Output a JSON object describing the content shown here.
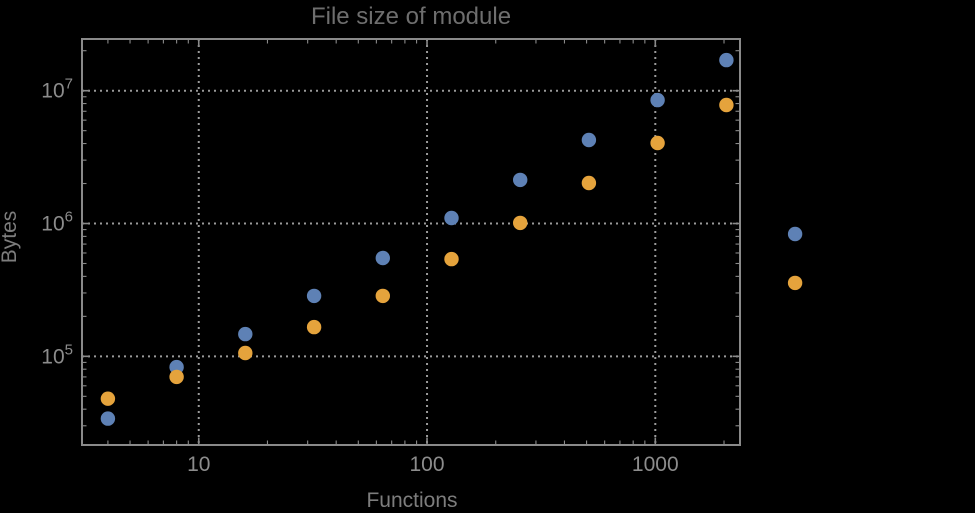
{
  "chart_data": {
    "type": "scatter",
    "title": "File size of module",
    "xlabel": "Functions",
    "ylabel": "Bytes",
    "x_scale": "log",
    "y_scale": "log",
    "xlim": [
      3.08,
      2350
    ],
    "ylim": [
      21500,
      24500000
    ],
    "grid": true,
    "legend_position": "none",
    "x_ticks": [
      {
        "value": 10,
        "label": "10"
      },
      {
        "value": 100,
        "label": "100"
      },
      {
        "value": 1000,
        "label": "1000"
      }
    ],
    "y_ticks": [
      {
        "value": 100000,
        "base": "10",
        "exp": "5"
      },
      {
        "value": 1000000,
        "base": "10",
        "exp": "6"
      },
      {
        "value": 10000000,
        "base": "10",
        "exp": "7"
      }
    ],
    "series": [
      {
        "name": "series-blue",
        "color": "#5E81B5",
        "x": [
          4,
          8,
          16,
          32,
          64,
          128,
          256,
          512,
          1024,
          2048,
          4096
        ],
        "y": [
          34000,
          83000,
          147000,
          285000,
          550000,
          1100000,
          2130000,
          4250000,
          8500000,
          17000000,
          834000
        ]
      },
      {
        "name": "series-orange",
        "color": "#E5A33C",
        "x": [
          4,
          8,
          16,
          32,
          64,
          128,
          256,
          512,
          1024,
          2048,
          4096
        ],
        "y": [
          48000,
          70000,
          106000,
          166000,
          285000,
          540000,
          1010000,
          2020000,
          4040000,
          7800000,
          357000
        ]
      }
    ]
  },
  "colors": {
    "background": "#000000",
    "frame": "#8a8a8a",
    "grid": "#9a9a9a",
    "tick_label": "#8c8c8c",
    "title": "#6e6e6e",
    "axis_label": "#7d7d7d"
  }
}
